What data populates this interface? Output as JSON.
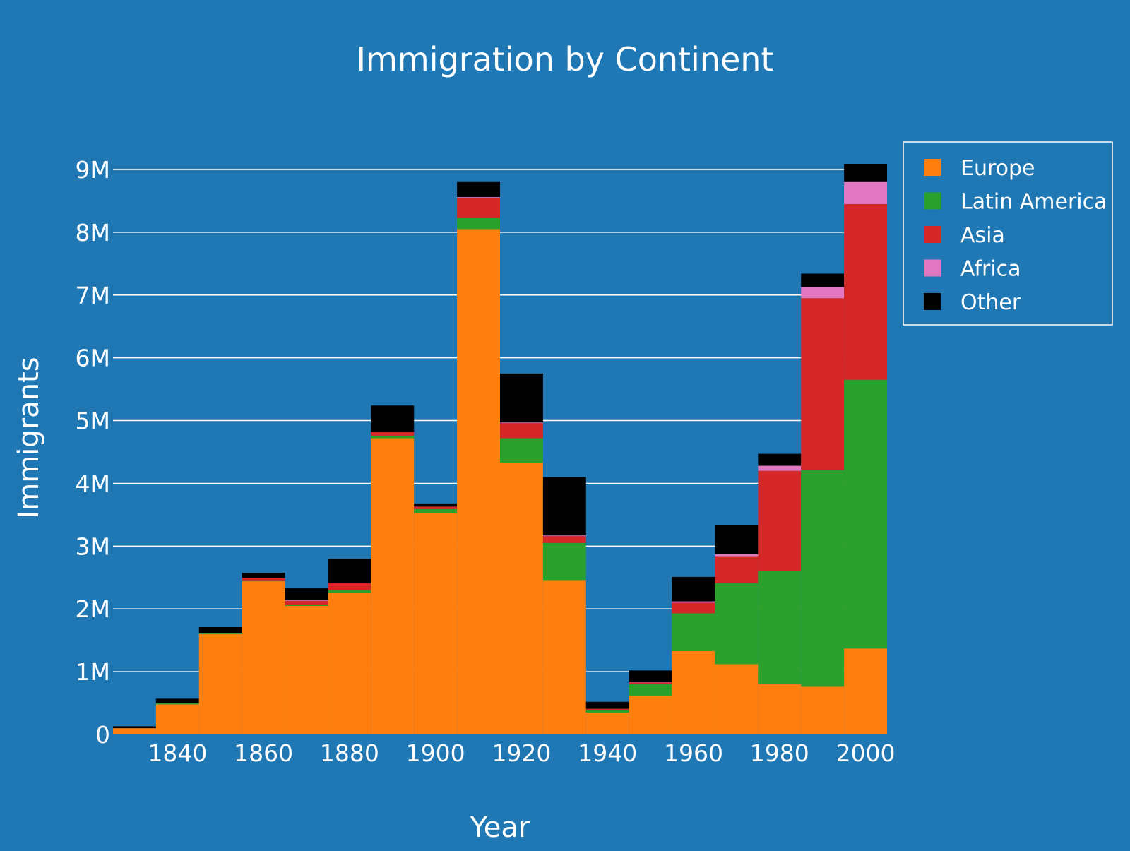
{
  "colors": {
    "background": "#1f77b4",
    "text": "#ffffff",
    "grid": "#ffffff"
  },
  "chart_data": {
    "type": "bar",
    "stacked": true,
    "bar_gap": 0,
    "title": "Immigration by Continent",
    "xlabel": "Year",
    "ylabel": "Immigrants",
    "x": [
      1830,
      1840,
      1850,
      1860,
      1870,
      1880,
      1890,
      1900,
      1910,
      1920,
      1930,
      1940,
      1950,
      1960,
      1970,
      1980,
      1990,
      2000
    ],
    "xlim": [
      1825,
      2005
    ],
    "xticks": [
      1840,
      1860,
      1880,
      1900,
      1920,
      1940,
      1960,
      1980,
      2000
    ],
    "ylim": [
      0,
      9900000
    ],
    "yticks": [
      0,
      1000000,
      2000000,
      3000000,
      4000000,
      5000000,
      6000000,
      7000000,
      8000000,
      9000000
    ],
    "ytick_labels": [
      "0",
      "1M",
      "2M",
      "3M",
      "4M",
      "5M",
      "6M",
      "7M",
      "8M",
      "9M"
    ],
    "grid": true,
    "legend_position": "top-right",
    "series": [
      {
        "name": "Europe",
        "color": "#ff7f0e",
        "values": [
          100000,
          480000,
          1600000,
          2440000,
          2050000,
          2250000,
          4720000,
          3530000,
          8050000,
          4330000,
          2460000,
          350000,
          620000,
          1330000,
          1120000,
          800000,
          760000,
          1370000
        ]
      },
      {
        "name": "Latin America",
        "color": "#2ca02c",
        "values": [
          0,
          20000,
          10000,
          15000,
          20000,
          50000,
          40000,
          60000,
          180000,
          390000,
          590000,
          40000,
          180000,
          600000,
          1290000,
          1810000,
          3450000,
          4280000
        ]
      },
      {
        "name": "Asia",
        "color": "#d62728",
        "values": [
          0,
          0,
          0,
          40000,
          60000,
          110000,
          60000,
          40000,
          320000,
          240000,
          110000,
          20000,
          30000,
          170000,
          430000,
          1590000,
          2740000,
          2800000
        ]
      },
      {
        "name": "Africa",
        "color": "#e377c2",
        "values": [
          0,
          0,
          10000,
          0,
          10000,
          0,
          0,
          0,
          10000,
          10000,
          10000,
          0,
          10000,
          20000,
          30000,
          80000,
          180000,
          350000
        ]
      },
      {
        "name": "Other",
        "color": "#000000",
        "values": [
          30000,
          70000,
          90000,
          80000,
          190000,
          390000,
          420000,
          50000,
          240000,
          780000,
          930000,
          110000,
          180000,
          390000,
          460000,
          190000,
          210000,
          290000
        ]
      }
    ]
  }
}
